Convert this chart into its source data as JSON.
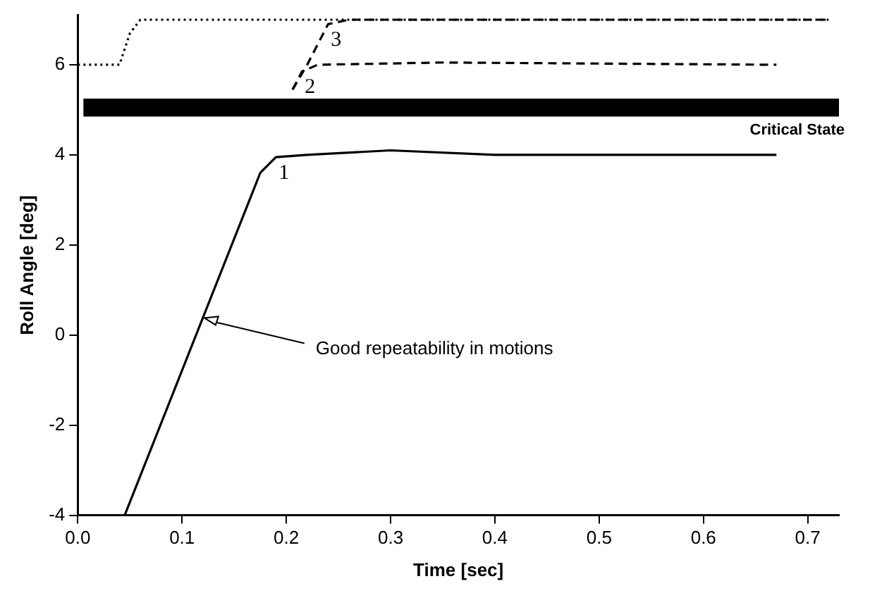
{
  "chart_data": {
    "type": "line",
    "xlabel": "Time [sec]",
    "ylabel": "Roll Angle [deg]",
    "xlim": [
      0,
      0.73
    ],
    "ylim": [
      -4,
      7.1
    ],
    "xticks": [
      {
        "value": 0,
        "label": "0.0"
      },
      {
        "value": 0.1,
        "label": "0.1"
      },
      {
        "value": 0.2,
        "label": "0.2"
      },
      {
        "value": 0.3,
        "label": "0.3"
      },
      {
        "value": 0.4,
        "label": "0.4"
      },
      {
        "value": 0.5,
        "label": "0.5"
      },
      {
        "value": 0.6,
        "label": "0.6"
      },
      {
        "value": 0.7,
        "label": "0.7"
      }
    ],
    "yticks": [
      -4,
      -2,
      0,
      2,
      4,
      6
    ],
    "grid": false,
    "legend": false,
    "marker": "none",
    "series": [
      {
        "name": "1",
        "color": "#000000",
        "line_style": "solid",
        "x": [
          0,
          0.045,
          0.175,
          0.19,
          0.22,
          0.3,
          0.4,
          0.67
        ],
        "values": [
          -4,
          -4,
          3.6,
          3.95,
          4.0,
          4.1,
          4.0,
          4.0
        ]
      },
      {
        "name": "2",
        "color": "#000000",
        "line_style": "dashed",
        "x": [
          0.206,
          0.215,
          0.23,
          0.35,
          0.67
        ],
        "values": [
          5.45,
          5.85,
          6.0,
          6.05,
          6.0
        ]
      },
      {
        "name": "3",
        "color": "#000000",
        "line_style": "dashed",
        "x": [
          0.206,
          0.22,
          0.24,
          0.26,
          0.72
        ],
        "values": [
          5.45,
          6.0,
          6.9,
          7.0,
          7.0
        ]
      },
      {
        "color": "#000000",
        "line_style": "dotted",
        "x": [
          0,
          0.04,
          0.05,
          0.06,
          0.72
        ],
        "values": [
          6,
          6,
          6.7,
          7.0,
          7.0
        ]
      }
    ],
    "bands": [
      {
        "axis": "y",
        "from": 4.85,
        "to": 5.25,
        "label": "Critical State",
        "color": "#000000"
      }
    ],
    "annotations": [
      {
        "text": "Good repeatability in motions",
        "x": 0.12,
        "y": 0.38
      }
    ]
  }
}
